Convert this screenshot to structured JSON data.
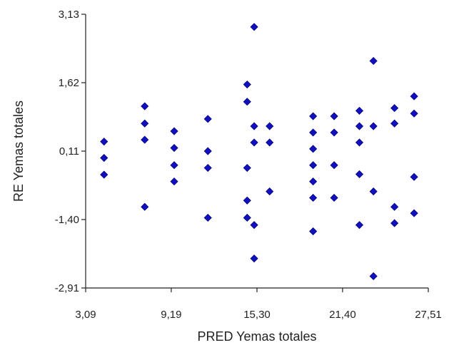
{
  "chart_data": {
    "type": "scatter",
    "xlabel": "PRED Yemas totales",
    "ylabel": "RE Yemas totales",
    "xlim": [
      3.09,
      27.51
    ],
    "ylim": [
      -2.91,
      3.13
    ],
    "x_ticks": [
      3.09,
      9.19,
      15.3,
      21.4,
      27.51
    ],
    "x_tick_labels": [
      "3,09",
      "9,19",
      "15,30",
      "21,40",
      "27,51"
    ],
    "y_ticks": [
      3.13,
      1.62,
      0.11,
      -1.4,
      -2.91
    ],
    "y_tick_labels": [
      "3,13",
      "1,62",
      "0,11",
      "-1,40",
      "-2,91"
    ],
    "grid": false,
    "marker": "diamond",
    "color": "#1010c0",
    "points": [
      {
        "x": 4.4,
        "y": 0.32
      },
      {
        "x": 4.4,
        "y": -0.04
      },
      {
        "x": 4.4,
        "y": -0.41
      },
      {
        "x": 7.3,
        "y": 1.1
      },
      {
        "x": 7.3,
        "y": 0.72
      },
      {
        "x": 7.3,
        "y": 0.36
      },
      {
        "x": 7.3,
        "y": -1.12
      },
      {
        "x": 9.4,
        "y": 0.55
      },
      {
        "x": 9.4,
        "y": 0.18
      },
      {
        "x": 9.4,
        "y": -0.2
      },
      {
        "x": 9.4,
        "y": -0.56
      },
      {
        "x": 11.8,
        "y": 0.82
      },
      {
        "x": 11.8,
        "y": 0.11
      },
      {
        "x": 11.8,
        "y": -0.26
      },
      {
        "x": 11.8,
        "y": -1.36
      },
      {
        "x": 14.6,
        "y": 1.58
      },
      {
        "x": 14.6,
        "y": 1.2
      },
      {
        "x": 14.6,
        "y": -0.26
      },
      {
        "x": 14.6,
        "y": -0.98
      },
      {
        "x": 14.6,
        "y": -1.36
      },
      {
        "x": 15.1,
        "y": 2.85
      },
      {
        "x": 15.1,
        "y": 0.66
      },
      {
        "x": 15.1,
        "y": 0.3
      },
      {
        "x": 15.1,
        "y": -1.52
      },
      {
        "x": 15.1,
        "y": -2.26
      },
      {
        "x": 16.2,
        "y": 0.66
      },
      {
        "x": 16.2,
        "y": 0.3
      },
      {
        "x": 16.2,
        "y": -0.78
      },
      {
        "x": 19.3,
        "y": 0.88
      },
      {
        "x": 19.3,
        "y": 0.52
      },
      {
        "x": 19.3,
        "y": 0.16
      },
      {
        "x": 19.3,
        "y": -0.2
      },
      {
        "x": 19.3,
        "y": -0.56
      },
      {
        "x": 19.3,
        "y": -0.92
      },
      {
        "x": 19.3,
        "y": -1.66
      },
      {
        "x": 20.8,
        "y": 0.88
      },
      {
        "x": 20.8,
        "y": 0.52
      },
      {
        "x": 20.8,
        "y": -0.2
      },
      {
        "x": 20.8,
        "y": -0.92
      },
      {
        "x": 22.6,
        "y": 1.0
      },
      {
        "x": 22.6,
        "y": 0.66
      },
      {
        "x": 22.6,
        "y": 0.3
      },
      {
        "x": 22.6,
        "y": -0.4
      },
      {
        "x": 22.6,
        "y": -1.52
      },
      {
        "x": 23.6,
        "y": 2.1
      },
      {
        "x": 23.6,
        "y": 0.66
      },
      {
        "x": 23.6,
        "y": -0.78
      },
      {
        "x": 23.6,
        "y": -2.65
      },
      {
        "x": 25.1,
        "y": 1.06
      },
      {
        "x": 25.1,
        "y": 0.72
      },
      {
        "x": 25.1,
        "y": -1.12
      },
      {
        "x": 25.1,
        "y": -1.48
      },
      {
        "x": 26.5,
        "y": 1.32
      },
      {
        "x": 26.5,
        "y": 0.94
      },
      {
        "x": 26.5,
        "y": -0.46
      },
      {
        "x": 26.5,
        "y": -1.26
      }
    ]
  }
}
